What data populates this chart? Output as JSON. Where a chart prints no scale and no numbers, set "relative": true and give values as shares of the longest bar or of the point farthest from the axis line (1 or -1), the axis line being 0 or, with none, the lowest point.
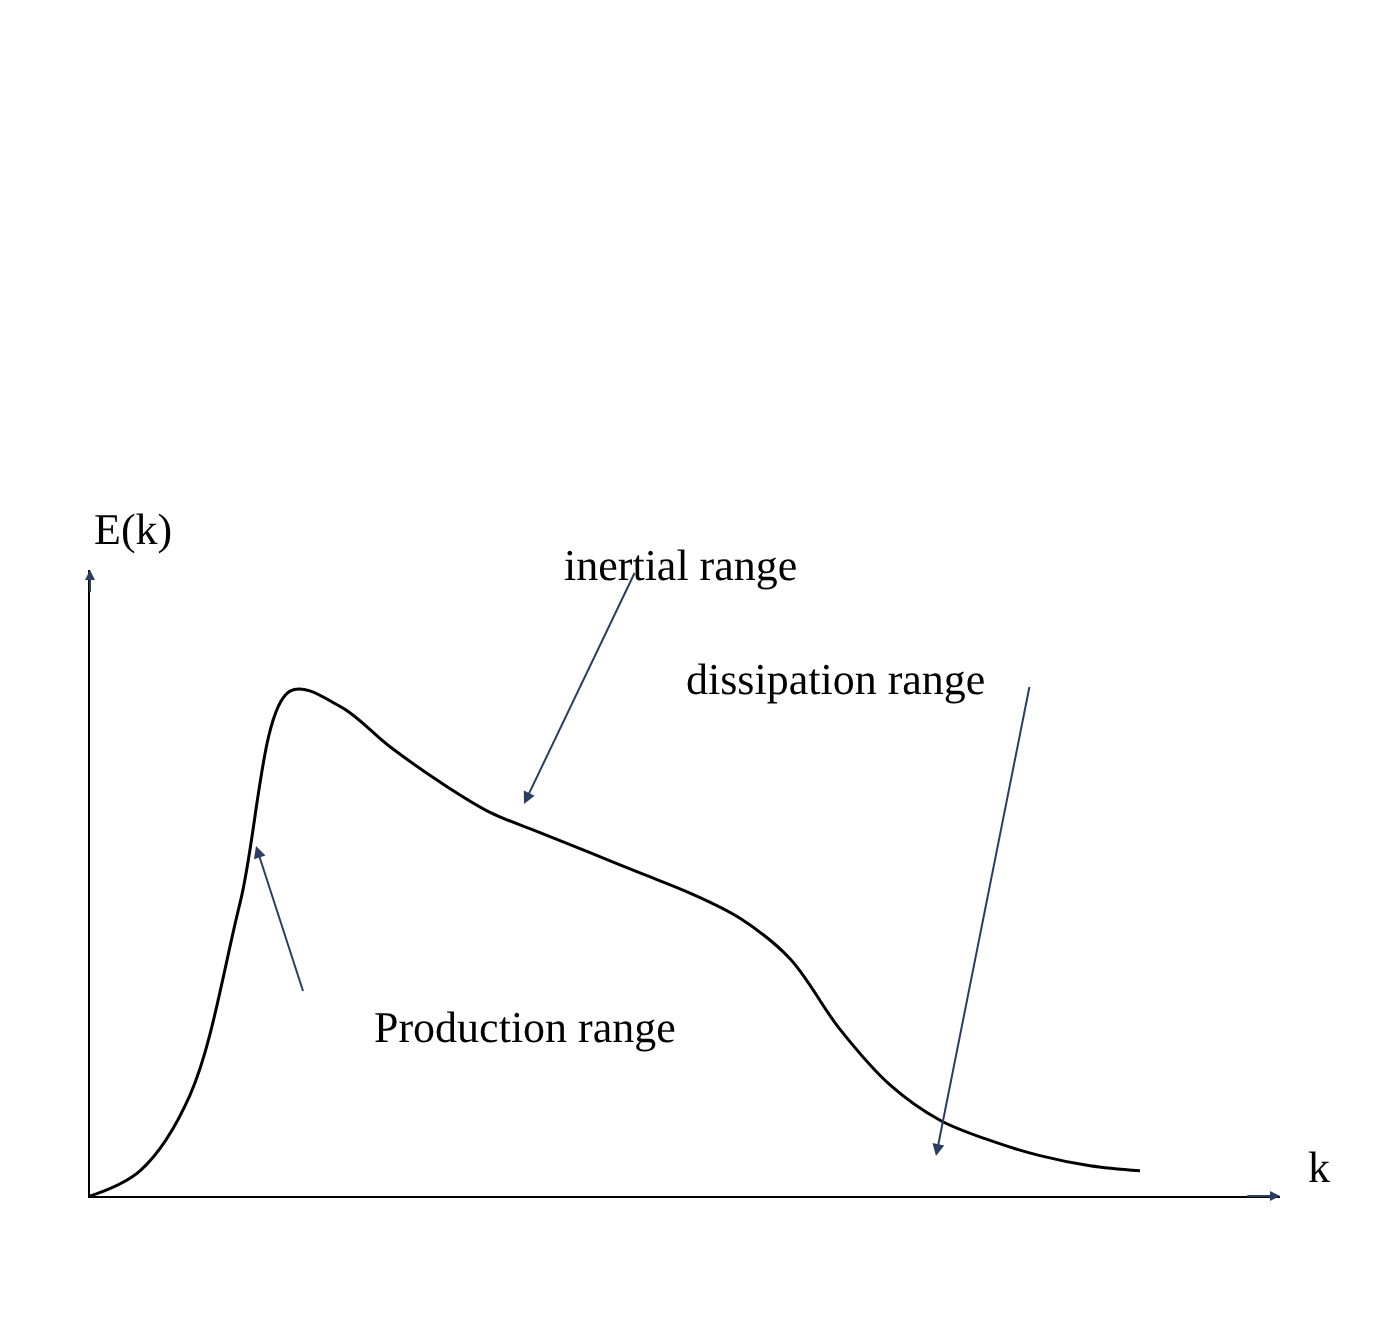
{
  "chart_data": {
    "type": "line",
    "relative": true,
    "xlabel": "k",
    "ylabel": "E(k)",
    "color": "#000000",
    "marker": "none",
    "line_style": "solid",
    "legend": false,
    "categories": [
      null,
      null,
      null,
      null,
      null,
      null,
      null,
      null,
      null,
      null,
      null,
      null,
      null,
      null,
      null,
      null,
      null,
      null,
      null,
      null,
      null,
      null
    ],
    "values": [
      0,
      0.05,
      0.2,
      0.58,
      1.0,
      0.97,
      0.89,
      0.82,
      0.76,
      0.72,
      0.68,
      0.64,
      0.6,
      0.55,
      0.47,
      0.33,
      0.22,
      0.15,
      0.11,
      0.08,
      0.06,
      0.05
    ],
    "annotations": [
      "inertial range",
      "dissipation range",
      "Production range"
    ]
  }
}
